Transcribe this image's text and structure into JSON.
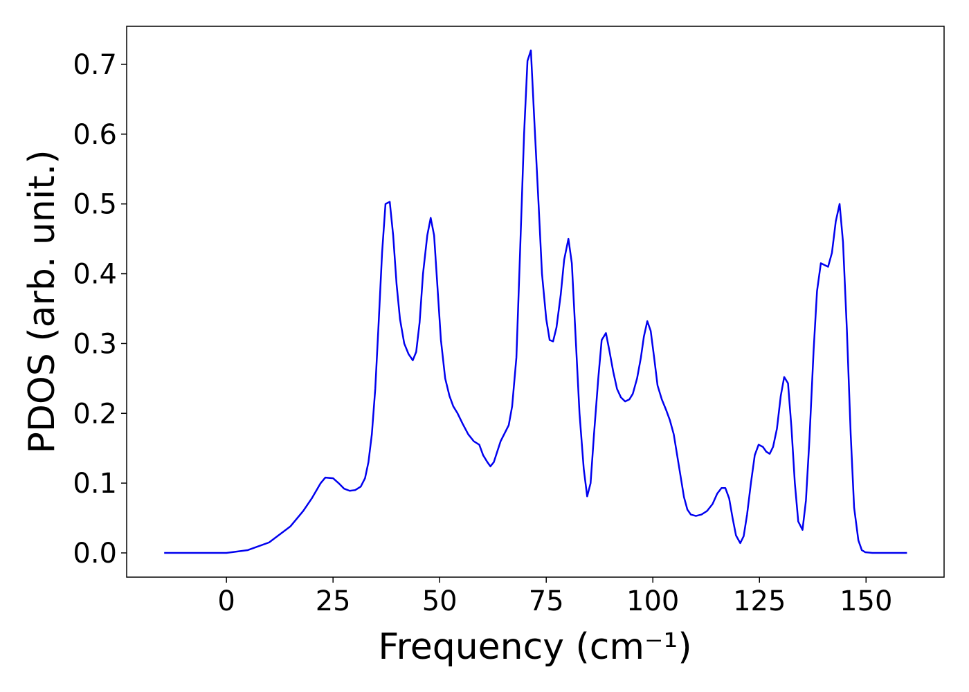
{
  "chart_data": {
    "type": "line",
    "xlabel": "Frequency (cm⁻¹)",
    "ylabel": "PDOS (arb. unit.)",
    "xlim": [
      -23.4,
      168.3
    ],
    "ylim": [
      -0.0347,
      0.7545
    ],
    "xticks": [
      0,
      25,
      50,
      75,
      100,
      125,
      150
    ],
    "yticks": [
      {
        "value": 0,
        "label": "0.0"
      },
      0.1,
      0.2,
      0.3,
      0.4,
      0.5,
      0.6,
      0.7
    ],
    "series": [
      {
        "color": "#0000ee",
        "x": [
          -14.6,
          0,
          5,
          10,
          15,
          18,
          20,
          22.1,
          23.2,
          25,
          26.3,
          27.6,
          28.9,
          30.2,
          31.5,
          32.5,
          33.3,
          34.1,
          34.9,
          35.7,
          36.5,
          37.3,
          38.3,
          39.1,
          39.9,
          40.7,
          41.7,
          42.7,
          43.7,
          44.5,
          45.3,
          46.1,
          47.1,
          47.9,
          48.7,
          49.5,
          50.3,
          51.3,
          52.3,
          53.2,
          54.2,
          55.4,
          56.7,
          58,
          59.3,
          60.2,
          61.2,
          61.9,
          62.7,
          64.3,
          66.2,
          67,
          68,
          68.8,
          69.8,
          70.6,
          71.4,
          72.2,
          73.2,
          74,
          75,
          75.8,
          76.6,
          77.4,
          78.4,
          79.2,
          80.2,
          81,
          81.8,
          82.8,
          83.8,
          84.6,
          85.4,
          86.2,
          87.2,
          88,
          89,
          89.8,
          90.7,
          91.6,
          92.5,
          93.5,
          94.5,
          95.3,
          96.3,
          97.2,
          97.9,
          98.7,
          99.5,
          100.3,
          101.1,
          102.1,
          103.1,
          104,
          104.9,
          105.7,
          106.5,
          107.3,
          108.1,
          108.9,
          110.1,
          111.4,
          112.7,
          114,
          115.1,
          116.1,
          117,
          117.9,
          118.7,
          119.5,
          120.5,
          121.3,
          122.1,
          123,
          123.9,
          124.8,
          125.8,
          126.6,
          127.4,
          128.2,
          129.1,
          130,
          130.8,
          131.7,
          132.5,
          133.3,
          134.1,
          135.1,
          135.9,
          136.7,
          137.7,
          138.5,
          139.4,
          141.1,
          142,
          142.9,
          143.8,
          144.6,
          145.5,
          146.4,
          147.2,
          148.2,
          149,
          149.8,
          151.5,
          159.6
        ],
        "values": [
          0,
          0,
          0.004,
          0.015,
          0.038,
          0.06,
          0.078,
          0.1,
          0.108,
          0.107,
          0.1,
          0.092,
          0.089,
          0.09,
          0.095,
          0.107,
          0.13,
          0.17,
          0.235,
          0.33,
          0.43,
          0.5,
          0.503,
          0.455,
          0.385,
          0.335,
          0.3,
          0.285,
          0.276,
          0.288,
          0.33,
          0.4,
          0.455,
          0.48,
          0.455,
          0.38,
          0.305,
          0.25,
          0.225,
          0.21,
          0.2,
          0.185,
          0.17,
          0.16,
          0.155,
          0.14,
          0.13,
          0.124,
          0.13,
          0.16,
          0.183,
          0.21,
          0.28,
          0.42,
          0.6,
          0.705,
          0.72,
          0.62,
          0.5,
          0.4,
          0.335,
          0.305,
          0.303,
          0.323,
          0.37,
          0.42,
          0.45,
          0.415,
          0.32,
          0.2,
          0.12,
          0.081,
          0.1,
          0.17,
          0.25,
          0.305,
          0.315,
          0.29,
          0.26,
          0.235,
          0.223,
          0.217,
          0.22,
          0.228,
          0.25,
          0.28,
          0.31,
          0.332,
          0.318,
          0.28,
          0.24,
          0.22,
          0.205,
          0.19,
          0.17,
          0.14,
          0.11,
          0.08,
          0.062,
          0.055,
          0.053,
          0.055,
          0.06,
          0.07,
          0.085,
          0.093,
          0.093,
          0.078,
          0.05,
          0.025,
          0.014,
          0.024,
          0.055,
          0.1,
          0.14,
          0.155,
          0.152,
          0.145,
          0.142,
          0.152,
          0.178,
          0.225,
          0.252,
          0.243,
          0.18,
          0.1,
          0.045,
          0.033,
          0.075,
          0.16,
          0.29,
          0.375,
          0.415,
          0.41,
          0.43,
          0.475,
          0.5,
          0.445,
          0.32,
          0.17,
          0.065,
          0.018,
          0.004,
          0.001,
          0,
          0
        ]
      }
    ]
  }
}
